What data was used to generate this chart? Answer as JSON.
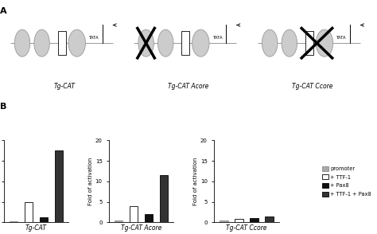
{
  "panel_B_groups": [
    "Tg-CAT",
    "Tg-CAT Acore",
    "Tg-CAT Ccore"
  ],
  "bar_data": {
    "Tg-CAT": [
      0.3,
      5.0,
      1.2,
      17.5
    ],
    "Tg-CAT Acore": [
      0.5,
      4.0,
      2.0,
      11.5
    ],
    "Tg-CAT Ccore": [
      0.5,
      0.8,
      1.0,
      1.5
    ]
  },
  "bar_colors": [
    "#aaaaaa",
    "#ffffff",
    "#111111",
    "#333333"
  ],
  "bar_edgecolors": [
    "#888888",
    "#000000",
    "#000000",
    "#000000"
  ],
  "legend_labels": [
    "promoter",
    "+ TTF-1",
    "+ Pax8",
    "+ TTF-1 + Pax8"
  ],
  "ylabel": "Fold of activation",
  "ylim": [
    0,
    20
  ],
  "yticks": [
    0,
    5,
    10,
    15,
    20
  ],
  "background_color": "#ffffff",
  "label_A": "A",
  "label_B": "B",
  "oval_color": "#cccccc",
  "oval_edge": "#999999",
  "line_color": "#999999",
  "cross_lw": 2.5
}
